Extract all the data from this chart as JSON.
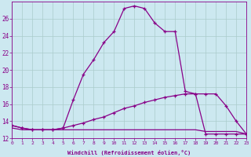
{
  "xlabel": "Windchill (Refroidissement éolien,°C)",
  "bg_color": "#cce8f0",
  "line_color": "#880088",
  "grid_color": "#aacccc",
  "x_hours": [
    0,
    1,
    2,
    3,
    4,
    5,
    6,
    7,
    8,
    9,
    10,
    11,
    12,
    13,
    14,
    15,
    16,
    17,
    18,
    19,
    20,
    21,
    22,
    23
  ],
  "temp_line": [
    13.5,
    13.2,
    13.0,
    13.0,
    13.0,
    13.2,
    16.5,
    19.5,
    21.2,
    23.2,
    24.5,
    27.2,
    27.5,
    27.2,
    25.5,
    24.5,
    24.5,
    17.5,
    17.2,
    17.2,
    17.2,
    15.8,
    14.0,
    12.5
  ],
  "windchill_line": [
    13.5,
    13.2,
    13.0,
    13.0,
    13.0,
    13.2,
    13.5,
    13.8,
    14.2,
    14.5,
    15.0,
    15.5,
    15.8,
    16.2,
    16.5,
    16.8,
    17.0,
    17.2,
    17.2,
    12.5,
    12.5,
    12.5,
    12.5,
    12.5
  ],
  "min_line": [
    13.2,
    13.0,
    13.0,
    13.0,
    13.0,
    13.0,
    13.0,
    13.0,
    13.0,
    13.0,
    13.0,
    13.0,
    13.0,
    13.0,
    13.0,
    13.0,
    13.0,
    13.0,
    13.0,
    12.8,
    12.8,
    12.8,
    12.8,
    12.5
  ],
  "ylim": [
    12,
    28
  ],
  "xlim": [
    0,
    23
  ],
  "yticks": [
    12,
    14,
    16,
    18,
    20,
    22,
    24,
    26
  ],
  "xtick_labels": [
    "0",
    "1",
    "2",
    "3",
    "4",
    "5",
    "6",
    "7",
    "8",
    "9",
    "10",
    "11",
    "12",
    "13",
    "14",
    "15",
    "16",
    "17",
    "18",
    "19",
    "20",
    "21",
    "22",
    "23"
  ]
}
